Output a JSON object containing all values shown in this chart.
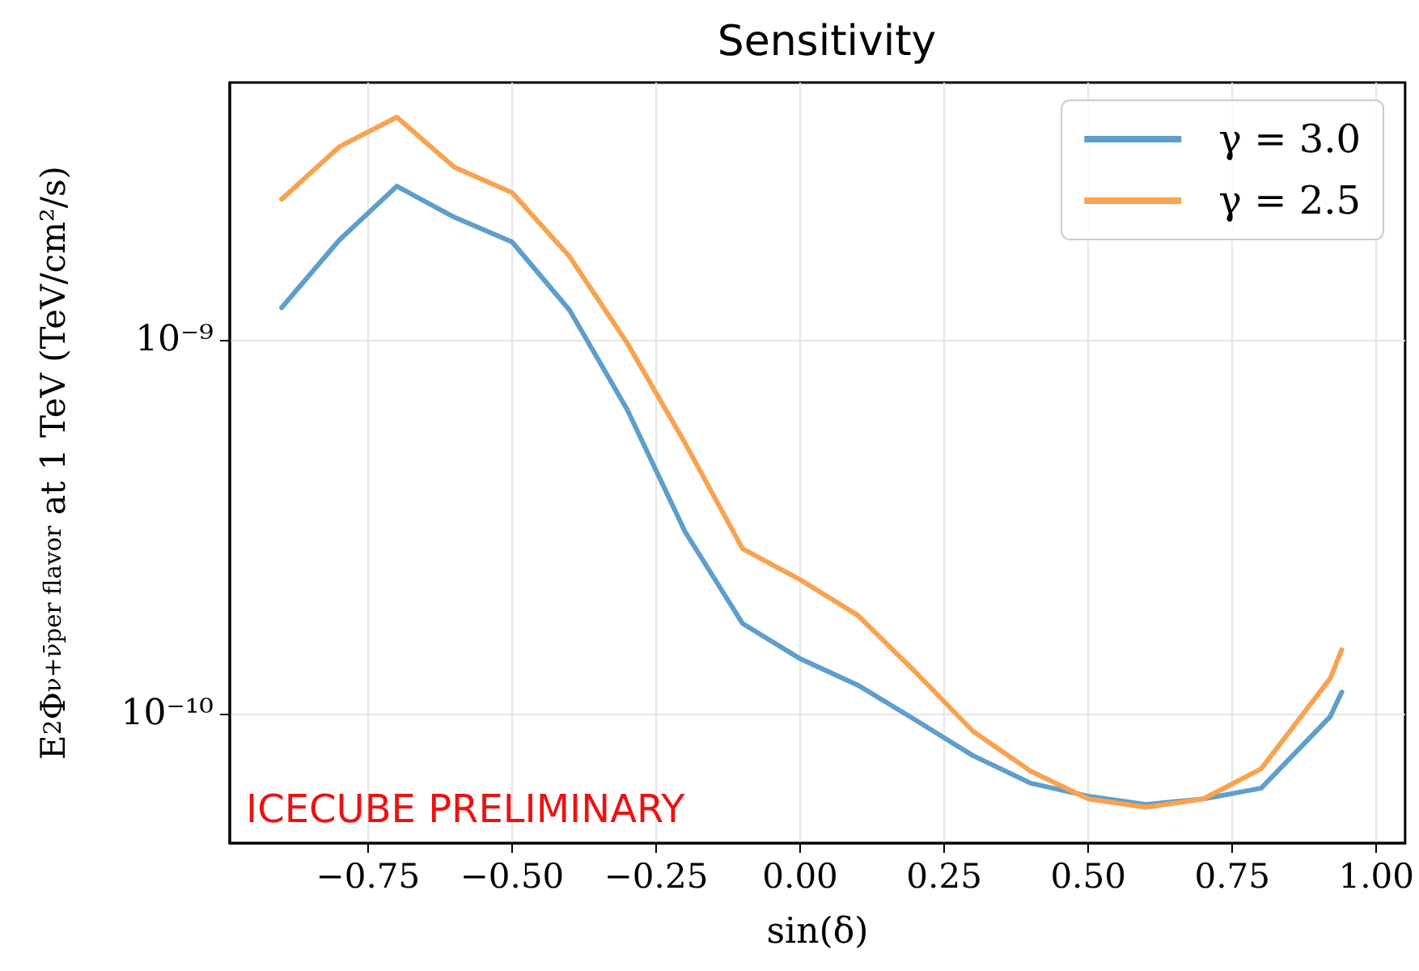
{
  "chart_data": {
    "type": "line",
    "title": "Sensitivity",
    "xlabel": "sin(δ)",
    "ylabel": "E$^{2}$Φ$_{ν+ν̄}$$^{per flavor}$ at 1 TeV (TeV/cm²/s)",
    "annotations": [
      "ICECUBE PRELIMINARY"
    ],
    "x": [
      -0.9,
      -0.8,
      -0.7,
      -0.6,
      -0.5,
      -0.4,
      -0.3,
      -0.2,
      -0.1,
      0.0,
      0.1,
      0.2,
      0.3,
      0.4,
      0.5,
      0.6,
      0.7,
      0.8,
      0.92,
      0.94
    ],
    "series": [
      {
        "name": "γ = 3.0",
        "color": "#5f9ecb",
        "values": [
          1.22e-09,
          1.85e-09,
          2.58e-09,
          2.13e-09,
          1.83e-09,
          1.2e-09,
          6.5e-10,
          3.07e-10,
          1.74e-10,
          1.4e-10,
          1.19e-10,
          9.6e-11,
          7.7e-11,
          6.5e-11,
          6e-11,
          5.7e-11,
          5.9e-11,
          6.3e-11,
          9.8e-11,
          1.14e-10
        ]
      },
      {
        "name": "γ = 2.5",
        "color": "#f9a24f",
        "values": [
          2.38e-09,
          3.29e-09,
          3.95e-09,
          2.9e-09,
          2.48e-09,
          1.67e-09,
          9.8e-10,
          5.3e-10,
          2.76e-10,
          2.28e-10,
          1.83e-10,
          1.29e-10,
          8.95e-11,
          7e-11,
          5.9e-11,
          5.6e-11,
          5.9e-11,
          7.1e-11,
          1.24e-10,
          1.48e-10
        ]
      }
    ],
    "xlim": [
      -0.99,
      1.05
    ],
    "xticks": [
      {
        "value": -0.75,
        "label": "−0.75"
      },
      {
        "value": -0.5,
        "label": "−0.50"
      },
      {
        "value": -0.25,
        "label": "−0.25"
      },
      {
        "value": 0,
        "label": "0.00"
      },
      {
        "value": 0.25,
        "label": "0.25"
      },
      {
        "value": 0.5,
        "label": "0.50"
      },
      {
        "value": 0.75,
        "label": "0.75"
      },
      {
        "value": 1.0,
        "label": "1.00"
      }
    ],
    "ylim": [
      4.49e-11,
      4.89e-09
    ],
    "yticks": [
      {
        "value": 1e-10,
        "label": "10⁻¹⁰"
      },
      {
        "value": 1e-09,
        "label": "10⁻⁹"
      }
    ],
    "log": "y",
    "grid": true,
    "legend": "top right",
    "marker": "none",
    "line_style": "solid"
  }
}
